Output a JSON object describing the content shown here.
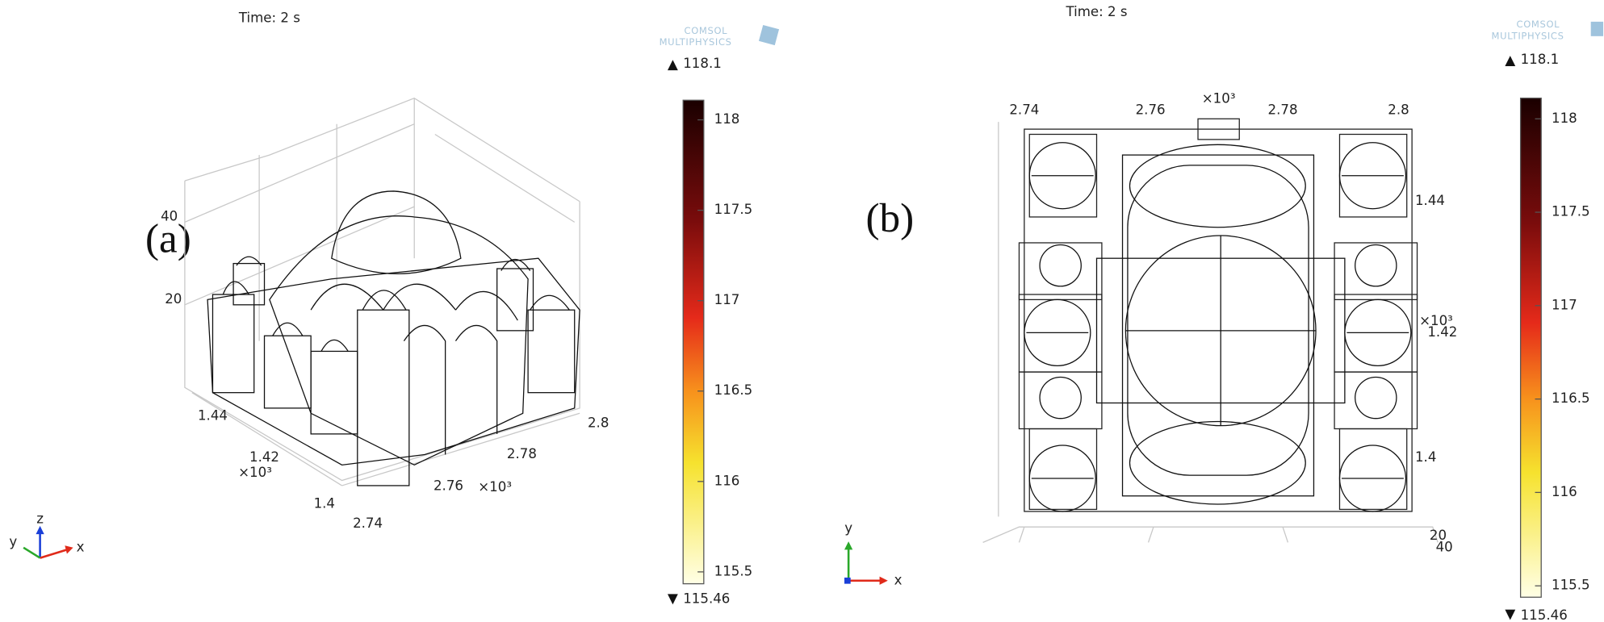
{
  "panels": [
    {
      "label": "(a)",
      "time": "Time: 2 s",
      "logo": [
        "COMSOL",
        "MULTIPHYSICS"
      ],
      "colorbar": {
        "max": 118.1,
        "min": 115.46,
        "ticks": [
          118,
          117.5,
          117,
          116.5,
          116,
          115.5
        ]
      },
      "axis_labels": [
        "40",
        "20",
        "1.44",
        "1.42",
        "×10³",
        "1.4",
        "2.74",
        "2.76",
        "×10³",
        "2.78",
        "2.8"
      ],
      "triad": [
        "z",
        "y",
        "x"
      ]
    },
    {
      "label": "(b)",
      "time": "Time: 2 s",
      "logo": [
        "COMSOL",
        "MULTIPHYSICS"
      ],
      "colorbar": {
        "max": 118.1,
        "min": 115.46,
        "ticks": [
          118,
          117.5,
          117,
          116.5,
          116,
          115.5
        ]
      },
      "axis_labels": [
        "2.74",
        "2.76",
        "×10³",
        "2.78",
        "2.8",
        "1.44",
        "×10³",
        "1.42",
        "1.4",
        "20",
        "40"
      ],
      "triad": [
        "y",
        "x"
      ]
    }
  ]
}
